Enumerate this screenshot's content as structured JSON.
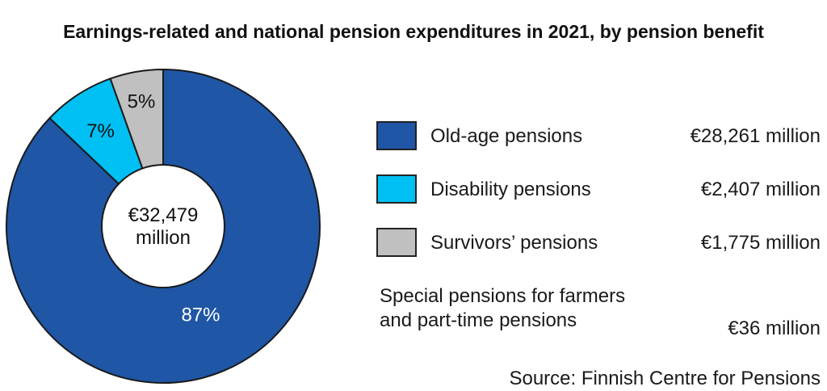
{
  "chart_data": {
    "type": "pie",
    "title": "Earnings-related and national pension expenditures in 2021, by pension benefit",
    "center_label": [
      "€32,479",
      "million"
    ],
    "slices": [
      {
        "name": "Old-age pensions",
        "value": 28261,
        "value_label": "€28,261 million",
        "percent_label": "87%",
        "color": "#1f56a6"
      },
      {
        "name": "Disability pensions",
        "value": 2407,
        "value_label": "€2,407 million",
        "percent_label": "7%",
        "color": "#00bff3"
      },
      {
        "name": "Survivors’ pensions",
        "value": 1775,
        "value_label": "€1,775 million",
        "percent_label": "5%",
        "color": "#c0c0c0"
      }
    ],
    "extra_item": {
      "label_lines": [
        "Special pensions for farmers",
        "and part-time pensions"
      ],
      "value_label": "€36 million",
      "value": 36
    },
    "legend_position": "right",
    "source": "Source: Finnish Centre for Pensions"
  }
}
